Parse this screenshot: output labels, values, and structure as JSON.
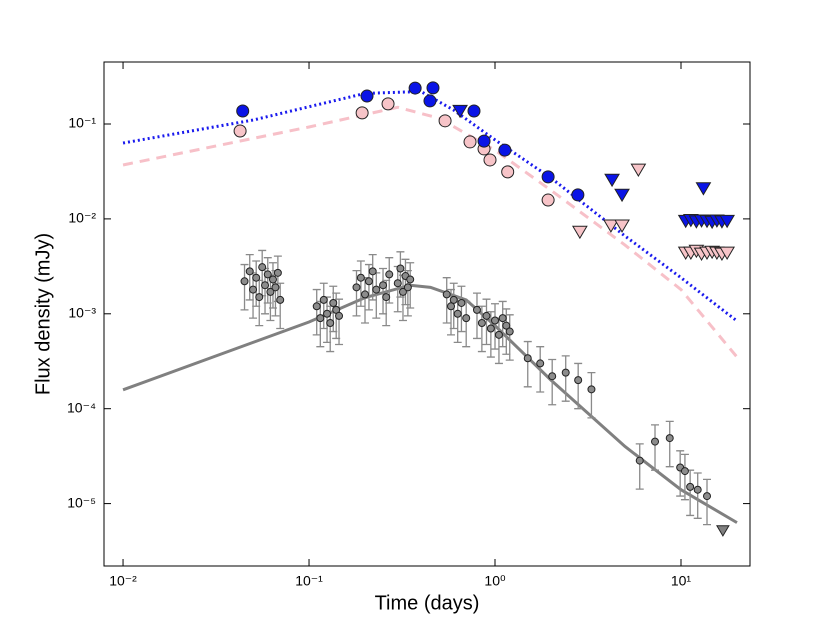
{
  "chart_data": {
    "type": "scatter",
    "xlabel": "Time (days)",
    "ylabel": "Flux density (mJy)",
    "xlog": true,
    "ylog": true,
    "xlim": [
      0.0079,
      23.5
    ],
    "ylim": [
      2.2e-06,
      0.45
    ],
    "xticks": [
      {
        "value": 0.01,
        "label": "10⁻²"
      },
      {
        "value": 0.1,
        "label": "10⁻¹"
      },
      {
        "value": 1,
        "label": "10⁰"
      },
      {
        "value": 10,
        "label": "10¹"
      }
    ],
    "yticks": [
      {
        "value": 1e-05,
        "label": "10⁻⁵"
      },
      {
        "value": 0.0001,
        "label": "10⁻⁴"
      },
      {
        "value": 0.001,
        "label": "10⁻³"
      },
      {
        "value": 0.01,
        "label": "10⁻²"
      },
      {
        "value": 0.1,
        "label": "10⁻¹"
      }
    ],
    "series": [
      {
        "type": "line",
        "color": "#f7c0c8",
        "linestyle": "dashed",
        "x": [
          0.01,
          0.1,
          0.3,
          0.5,
          1,
          2,
          5,
          10,
          20
        ],
        "values": [
          0.037,
          0.093,
          0.15,
          0.115,
          0.053,
          0.02,
          0.0053,
          0.0018,
          0.00035
        ]
      },
      {
        "type": "line",
        "color": "#1a1aee",
        "linestyle": "dotted",
        "x": [
          0.01,
          0.05,
          0.2,
          0.4,
          0.6,
          1,
          2,
          5,
          10,
          20
        ],
        "values": [
          0.063,
          0.11,
          0.21,
          0.22,
          0.14,
          0.068,
          0.027,
          0.0066,
          0.0024,
          0.00084
        ]
      },
      {
        "type": "line",
        "color": "#808080",
        "linestyle": "solid",
        "x": [
          0.01,
          0.1,
          0.2,
          0.35,
          0.45,
          0.7,
          1,
          2,
          5,
          10,
          20
        ],
        "values": [
          0.000158,
          0.00082,
          0.00148,
          0.002,
          0.0019,
          0.0014,
          0.00075,
          0.0002,
          4e-05,
          1.4e-05,
          6.3e-06
        ]
      },
      {
        "type": "scatter",
        "color": "#8c8c8c",
        "marker": "circle",
        "size": 3.5,
        "x": [
          0.045,
          0.048,
          0.05,
          0.052,
          0.054,
          0.056,
          0.058,
          0.06,
          0.062,
          0.064,
          0.066,
          0.068,
          0.07,
          0.11,
          0.115,
          0.12,
          0.125,
          0.13,
          0.135,
          0.14,
          0.145,
          0.18,
          0.19,
          0.2,
          0.21,
          0.22,
          0.23,
          0.25,
          0.26,
          0.27,
          0.3,
          0.31,
          0.32,
          0.33,
          0.34,
          0.35,
          0.55,
          0.58,
          0.6,
          0.63,
          0.66,
          0.7,
          0.8,
          0.85,
          0.9,
          0.95,
          1.0,
          1.05,
          1.1,
          1.15,
          1.2,
          1.5,
          1.75,
          2.03,
          2.4,
          2.8,
          3.3,
          6.0,
          7.25,
          8.7,
          9.9,
          10.5,
          11.2,
          12.3,
          13.8
        ],
        "values": [
          0.0022,
          0.0028,
          0.0018,
          0.0024,
          0.0015,
          0.0031,
          0.002,
          0.0026,
          0.0017,
          0.0023,
          0.0019,
          0.0027,
          0.0014,
          0.0012,
          0.0009,
          0.0014,
          0.001,
          0.0008,
          0.0013,
          0.0011,
          0.00095,
          0.0019,
          0.0024,
          0.0016,
          0.0022,
          0.0028,
          0.0018,
          0.002,
          0.0015,
          0.0026,
          0.0021,
          0.003,
          0.0017,
          0.0025,
          0.0019,
          0.0023,
          0.0016,
          0.0012,
          0.0014,
          0.001,
          0.0013,
          0.0009,
          0.0011,
          0.0008,
          0.00095,
          0.0007,
          0.00085,
          0.0006,
          0.0009,
          0.00075,
          0.00065,
          0.00034,
          0.0003,
          0.00022,
          0.00024,
          0.0002,
          0.00016,
          2.84e-05,
          4.5e-05,
          4.9e-05,
          2.4e-05,
          2.2e-05,
          1.5e-05,
          1.4e-05,
          1.2e-05
        ],
        "errors": [
          0.0011,
          0.0014,
          0.0009,
          0.0012,
          0.00075,
          0.00155,
          0.001,
          0.0013,
          0.00085,
          0.00115,
          0.00095,
          0.00135,
          0.0007,
          0.0006,
          0.00045,
          0.0007,
          0.0005,
          0.0004,
          0.00065,
          0.00055,
          0.000475,
          0.00095,
          0.0012,
          0.0008,
          0.0011,
          0.0014,
          0.0009,
          0.001,
          0.00075,
          0.0013,
          0.00105,
          0.0015,
          0.00085,
          0.00125,
          0.00095,
          0.00115,
          0.0008,
          0.0006,
          0.0007,
          0.0005,
          0.00065,
          0.00045,
          0.00055,
          0.0004,
          0.000475,
          0.00035,
          0.000425,
          0.0003,
          0.00045,
          0.000375,
          0.000325,
          0.00017,
          0.00015,
          0.00011,
          0.00012,
          0.0001,
          8e-05,
          1.42e-05,
          2.25e-05,
          2.45e-05,
          1.2e-05,
          1.1e-05,
          7.5e-06,
          7e-06,
          6e-06
        ]
      },
      {
        "type": "scatter",
        "color": "#808080",
        "marker": "triangle-down",
        "size": 6,
        "x": [
          16.8
        ],
        "values": [
          5.2e-06
        ]
      },
      {
        "type": "scatter",
        "color": "#f7c4c8",
        "marker": "circle",
        "size": 6,
        "x": [
          0.0426,
          0.193,
          0.266,
          0.539,
          0.734,
          0.873,
          0.94,
          1.17,
          1.93
        ],
        "values": [
          0.0844,
          0.131,
          0.163,
          0.108,
          0.0647,
          0.0546,
          0.0418,
          0.0313,
          0.0158
        ]
      },
      {
        "type": "scatter",
        "color": "#f7c4c8",
        "marker": "triangle-down",
        "size": 7,
        "x": [
          2.86,
          4.2,
          4.82,
          5.9,
          10.6,
          11.3,
          12.1,
          12.9,
          13.8,
          14.7,
          15.6,
          16.6,
          17.7
        ],
        "values": [
          0.0073,
          0.0085,
          0.0085,
          0.033,
          0.0044,
          0.0044,
          0.0046,
          0.0043,
          0.0044,
          0.0045,
          0.0044,
          0.0043,
          0.0044
        ]
      },
      {
        "type": "scatter",
        "color": "#0a14e6",
        "marker": "circle",
        "size": 6,
        "x": [
          0.044,
          0.205,
          0.372,
          0.464,
          0.447,
          0.771,
          0.873,
          1.13,
          1.93,
          2.79
        ],
        "values": [
          0.137,
          0.197,
          0.239,
          0.24,
          0.175,
          0.137,
          0.066,
          0.053,
          0.0277,
          0.0179
        ]
      },
      {
        "type": "scatter",
        "color": "#0a14e6",
        "marker": "triangle-down",
        "size": 7,
        "x": [
          0.649,
          4.26,
          4.82,
          13.2,
          10.6,
          11.3,
          12.1,
          12.9,
          13.8,
          14.7,
          15.6,
          16.6,
          17.7
        ],
        "values": [
          0.137,
          0.0258,
          0.0179,
          0.021,
          0.0095,
          0.0097,
          0.0094,
          0.0096,
          0.0095,
          0.0093,
          0.0096,
          0.0094,
          0.0095
        ]
      }
    ]
  }
}
